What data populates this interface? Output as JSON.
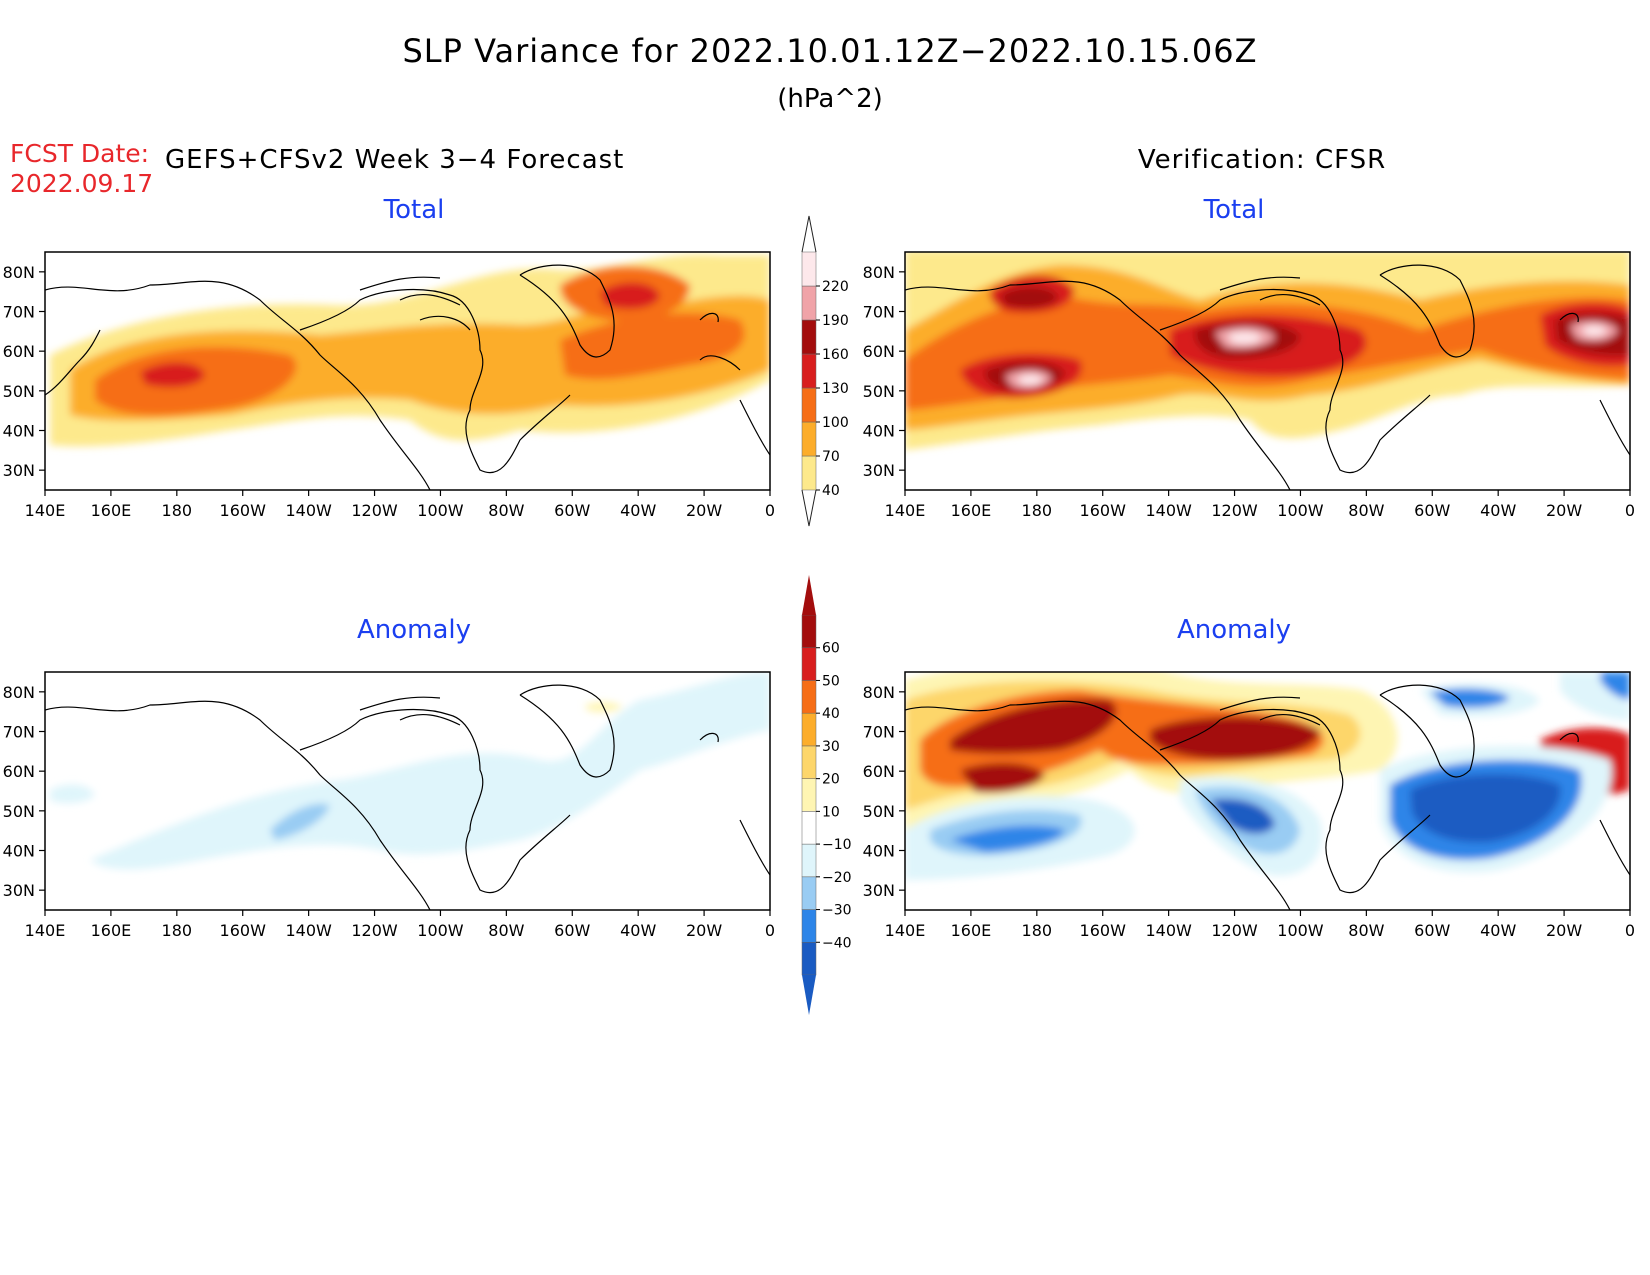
{
  "title": "SLP Variance for 2022.10.01.12Z−2022.10.15.06Z",
  "units": "(hPa^2)",
  "fcst_date_label": "FCST Date:",
  "fcst_date_value": "2022.09.17",
  "left_header": "GEFS+CFSv2 Week 3−4 Forecast",
  "right_header": "Verification: CFSR",
  "panels": [
    {
      "id": "fc-total",
      "subtitle": "Total",
      "field": "total"
    },
    {
      "id": "ver-total",
      "subtitle": "Total",
      "field": "total"
    },
    {
      "id": "fc-anom",
      "subtitle": "Anomaly",
      "field": "anomaly"
    },
    {
      "id": "ver-anom",
      "subtitle": "Anomaly",
      "field": "anomaly"
    }
  ],
  "lat_ticks": [
    "80N",
    "70N",
    "60N",
    "50N",
    "40N",
    "30N"
  ],
  "lat_values": [
    80,
    70,
    60,
    50,
    40,
    30
  ],
  "lon_ticks": [
    "140E",
    "160E",
    "180",
    "160W",
    "140W",
    "120W",
    "100W",
    "80W",
    "60W",
    "40W",
    "20W",
    "0"
  ],
  "lon_values": [
    140,
    160,
    180,
    200,
    220,
    240,
    260,
    280,
    300,
    320,
    340,
    360
  ],
  "lat_range": [
    25,
    85
  ],
  "lon_range": [
    140,
    360
  ],
  "colorbar_total": {
    "labels": [
      "40",
      "70",
      "100",
      "130",
      "160",
      "190",
      "220"
    ],
    "colors": [
      "#fde98c",
      "#fcad2b",
      "#f66e17",
      "#d81e1e",
      "#a30d0d",
      "#f0a3a8",
      "#fde8eb"
    ]
  },
  "colorbar_anomaly": {
    "labels": [
      "−40",
      "−30",
      "−20",
      "−10",
      "10",
      "20",
      "30",
      "40",
      "50",
      "60"
    ],
    "colors_neg": [
      "#1a5bc2",
      "#2d85e8",
      "#99ccf3",
      "#dff5fb"
    ],
    "colors_pos": [
      "#fef5b3",
      "#fdd66b",
      "#fcad2b",
      "#f66e17",
      "#d81e1e",
      "#a30d0d"
    ]
  }
}
